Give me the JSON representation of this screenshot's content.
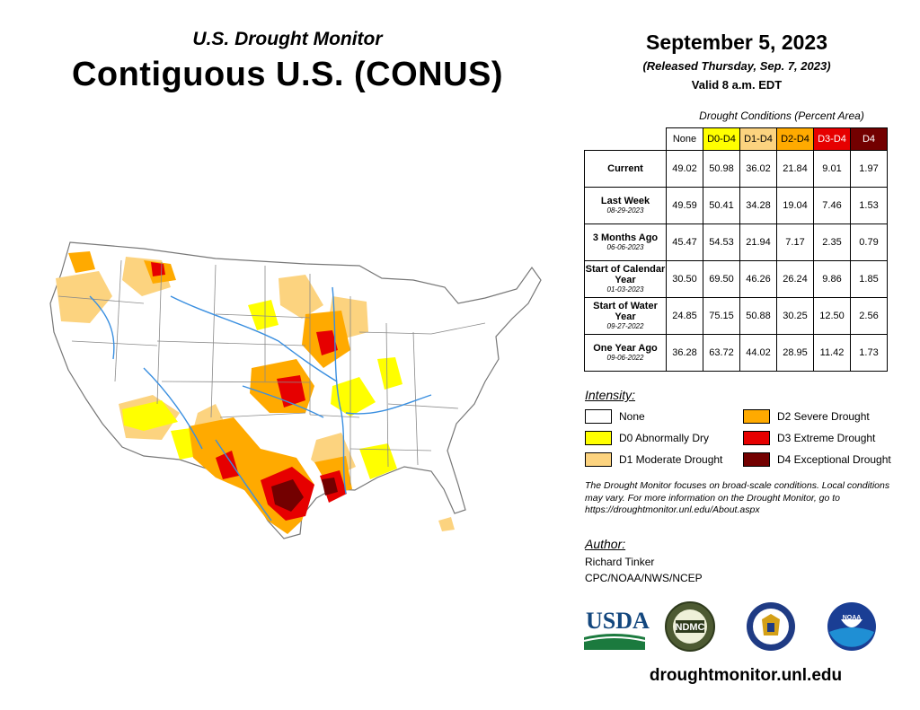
{
  "header": {
    "kicker": "U.S. Drought Monitor",
    "title": "Contiguous U.S. (CONUS)",
    "date": "September 5, 2023",
    "released": "(Released Thursday, Sep. 7, 2023)",
    "valid": "Valid 8 a.m. EDT"
  },
  "table": {
    "caption": "Drought Conditions (Percent Area)",
    "columns": [
      "None",
      "D0-D4",
      "D1-D4",
      "D2-D4",
      "D3-D4",
      "D4"
    ],
    "rows": [
      {
        "label": "Current",
        "date": "",
        "values": [
          "49.02",
          "50.98",
          "36.02",
          "21.84",
          "9.01",
          "1.97"
        ]
      },
      {
        "label": "Last Week",
        "date": "08-29-2023",
        "values": [
          "49.59",
          "50.41",
          "34.28",
          "19.04",
          "7.46",
          "1.53"
        ]
      },
      {
        "label": "3 Months Ago",
        "date": "06-06-2023",
        "values": [
          "45.47",
          "54.53",
          "21.94",
          "7.17",
          "2.35",
          "0.79"
        ]
      },
      {
        "label": "Start of Calendar Year",
        "date": "01-03-2023",
        "values": [
          "30.50",
          "69.50",
          "46.26",
          "26.24",
          "9.86",
          "1.85"
        ]
      },
      {
        "label": "Start of Water Year",
        "date": "09-27-2022",
        "values": [
          "24.85",
          "75.15",
          "50.88",
          "30.25",
          "12.50",
          "2.56"
        ]
      },
      {
        "label": "One Year Ago",
        "date": "09-06-2022",
        "values": [
          "36.28",
          "63.72",
          "44.02",
          "28.95",
          "11.42",
          "1.73"
        ]
      }
    ]
  },
  "legend": {
    "heading": "Intensity:",
    "items": [
      {
        "label": "None",
        "color": "#ffffff"
      },
      {
        "label": "D0 Abnormally Dry",
        "color": "#ffff00"
      },
      {
        "label": "D1 Moderate Drought",
        "color": "#fcd37f"
      },
      {
        "label": "D2 Severe Drought",
        "color": "#ffaa00"
      },
      {
        "label": "D3 Extreme Drought",
        "color": "#e60000"
      },
      {
        "label": "D4 Exceptional Drought",
        "color": "#730000"
      }
    ]
  },
  "note": "The Drought Monitor focuses on broad-scale conditions. Local conditions may vary. For more information on the Drought Monitor, go to https://droughtmonitor.unl.edu/About.aspx",
  "author": {
    "heading": "Author:",
    "name": "Richard Tinker",
    "org": "CPC/NOAA/NWS/NCEP"
  },
  "logos": {
    "usda": "USDA",
    "ndmc": "NDMC",
    "noaa": "NOAA"
  },
  "footer_url": "droughtmonitor.unl.edu",
  "colors": {
    "river": "#3a8fe0",
    "border": "#8a8a8a"
  }
}
